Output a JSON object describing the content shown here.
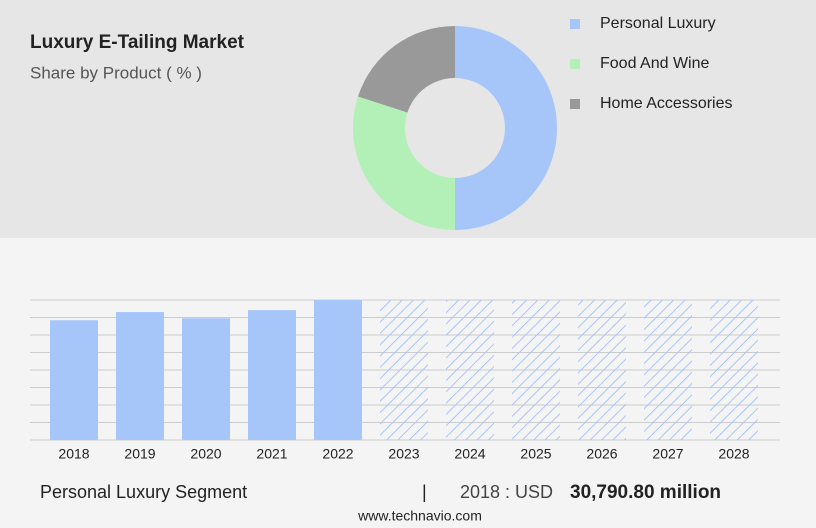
{
  "header": {
    "title": "Luxury E-Tailing Market",
    "subtitle": "Share by Product ( % )"
  },
  "chart_data": [
    {
      "type": "donut",
      "series": [
        {
          "name": "Personal Luxury",
          "color": "#a6c6fa",
          "values": [
            50
          ]
        },
        {
          "name": "Food And Wine",
          "color": "#b3f0b8",
          "values": [
            30
          ]
        },
        {
          "name": "Home Accessories",
          "color": "#999999",
          "values": [
            20
          ]
        }
      ]
    },
    {
      "type": "bar",
      "categories": [
        "2018",
        "2019",
        "2020",
        "2021",
        "2022",
        "2023",
        "2024",
        "2025",
        "2026",
        "2027",
        "2028"
      ],
      "values": [
        30790.8,
        32900,
        31300,
        33400,
        36000,
        null,
        null,
        null,
        null,
        null,
        null
      ],
      "color": "#a6c6fa",
      "ylim": [
        0,
        36000
      ],
      "yticks": [
        0,
        4500,
        9000,
        13500,
        18000,
        22500,
        27000,
        31500,
        36000
      ],
      "grid": true
    }
  ],
  "footer": {
    "segment": "Personal Luxury Segment",
    "separator": "|",
    "year_label": "2018 : USD",
    "value_label": "30,790.80 million",
    "source": "www.technavio.com"
  }
}
